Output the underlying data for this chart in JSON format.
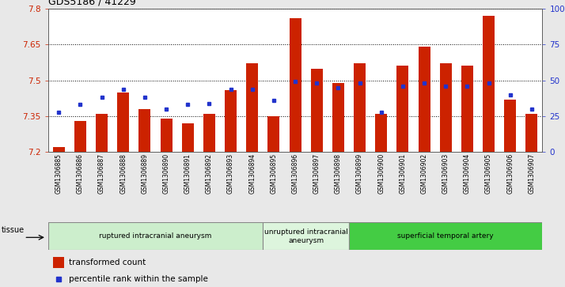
{
  "title": "GDS5186 / 41229",
  "samples": [
    "GSM1306885",
    "GSM1306886",
    "GSM1306887",
    "GSM1306888",
    "GSM1306889",
    "GSM1306890",
    "GSM1306891",
    "GSM1306892",
    "GSM1306893",
    "GSM1306894",
    "GSM1306895",
    "GSM1306896",
    "GSM1306897",
    "GSM1306898",
    "GSM1306899",
    "GSM1306900",
    "GSM1306901",
    "GSM1306902",
    "GSM1306903",
    "GSM1306904",
    "GSM1306905",
    "GSM1306906",
    "GSM1306907"
  ],
  "bar_values": [
    7.22,
    7.33,
    7.36,
    7.45,
    7.38,
    7.34,
    7.32,
    7.36,
    7.46,
    7.57,
    7.35,
    7.76,
    7.55,
    7.49,
    7.57,
    7.36,
    7.56,
    7.64,
    7.57,
    7.56,
    7.77,
    7.42,
    7.36
  ],
  "percentile_values": [
    28,
    33,
    38,
    44,
    38,
    30,
    33,
    34,
    44,
    44,
    36,
    49,
    48,
    45,
    48,
    28,
    46,
    48,
    46,
    46,
    48,
    40,
    30
  ],
  "y_min": 7.2,
  "y_max": 7.8,
  "y_ticks": [
    7.2,
    7.35,
    7.5,
    7.65,
    7.8
  ],
  "y2_tick_labels": [
    "0",
    "25",
    "50",
    "75",
    "100%"
  ],
  "bar_color": "#cc2200",
  "dot_color": "#2233cc",
  "fig_bg": "#e8e8e8",
  "plot_bg": "#ffffff",
  "groups": [
    {
      "label": "ruptured intracranial aneurysm",
      "start": 0,
      "end": 10,
      "color": "#cceecc"
    },
    {
      "label": "unruptured intracranial\naneurysm",
      "start": 10,
      "end": 14,
      "color": "#ddf5dd"
    },
    {
      "label": "superficial temporal artery",
      "start": 14,
      "end": 23,
      "color": "#44cc44"
    }
  ],
  "legend_bar_label": "transformed count",
  "legend_dot_label": "percentile rank within the sample",
  "tissue_label": "tissue"
}
